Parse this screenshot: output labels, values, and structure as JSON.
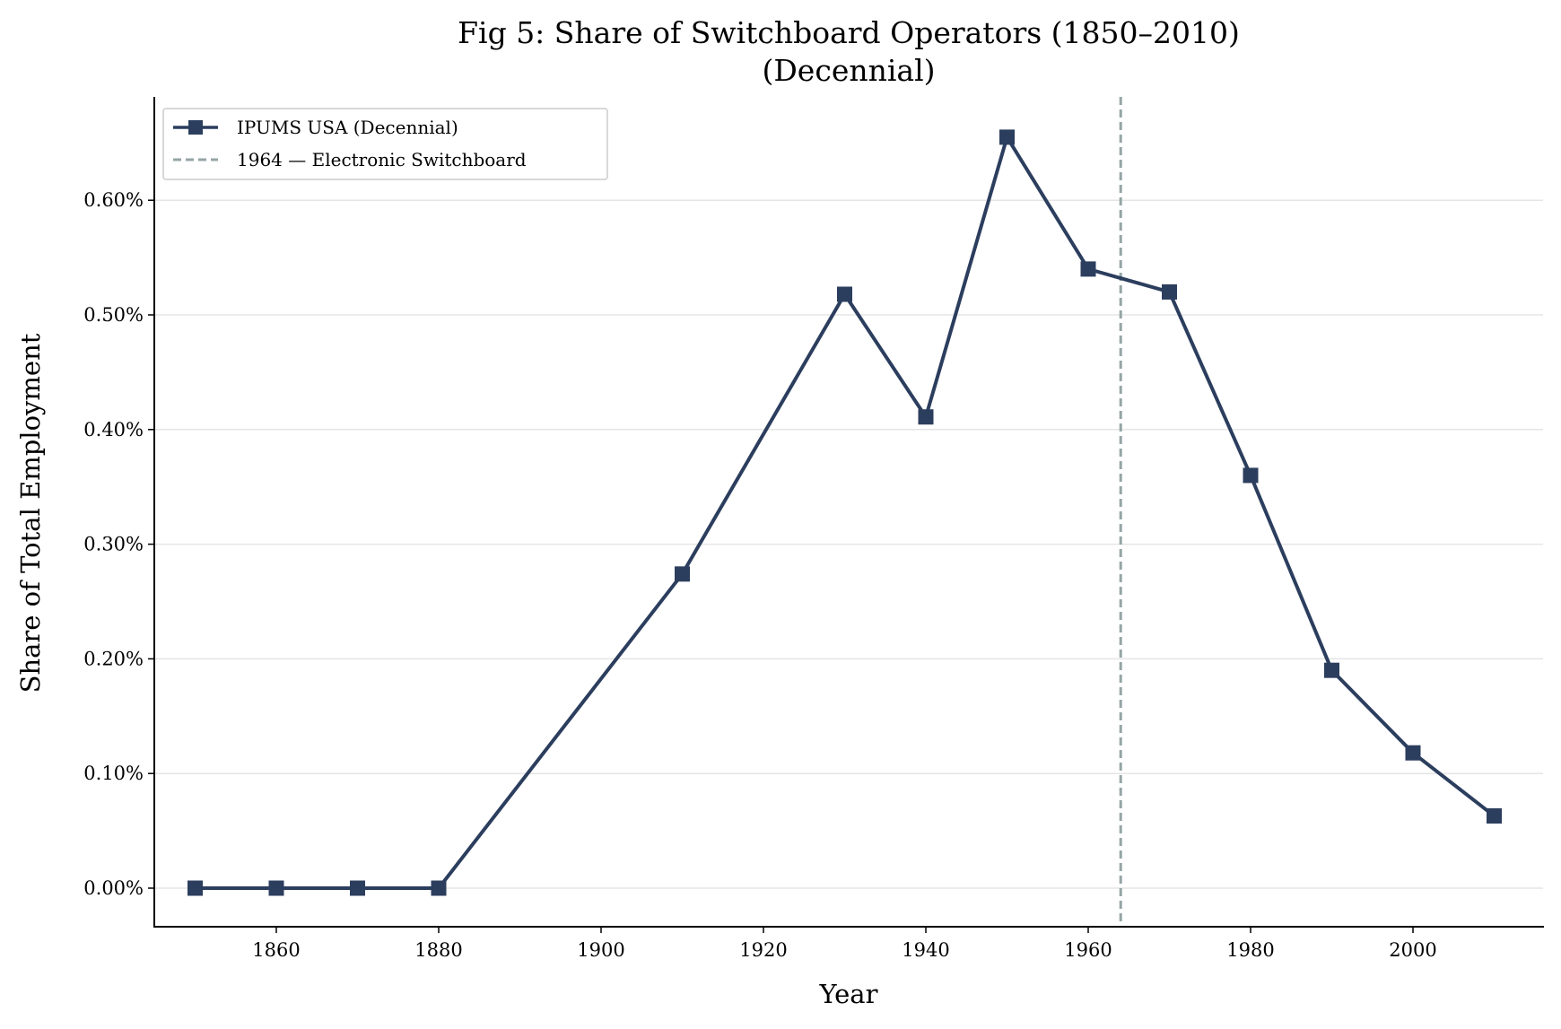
{
  "chart_data": {
    "type": "line",
    "title": "Fig 5: Share of Switchboard Operators (1850–2010)",
    "subtitle": "(Decennial)",
    "xlabel": "Year",
    "ylabel": "Share of Total Employment",
    "xlim": [
      1845,
      2015
    ],
    "ylim": [
      -0.032,
      0.69
    ],
    "x_ticks": [
      1860,
      1880,
      1900,
      1920,
      1940,
      1960,
      1980,
      2000
    ],
    "x_tick_labels": [
      "1860",
      "1880",
      "1900",
      "1920",
      "1940",
      "1960",
      "1980",
      "2000"
    ],
    "y_ticks": [
      0,
      0.1,
      0.2,
      0.3,
      0.4,
      0.5,
      0.6
    ],
    "y_tick_labels": [
      "0.00%",
      "0.10%",
      "0.20%",
      "0.30%",
      "0.40%",
      "0.50%",
      "0.60%"
    ],
    "grid": "horizontal",
    "legend_placement": "top-left",
    "series": [
      {
        "name": "IPUMS USA (Decennial)",
        "color": "#2c3e5e",
        "marker": "square",
        "x": [
          1850,
          1860,
          1870,
          1880,
          1910,
          1930,
          1940,
          1950,
          1960,
          1970,
          1980,
          1990,
          2000,
          2010
        ],
        "y": [
          0.0,
          0.0,
          0.0,
          0.0,
          0.274,
          0.518,
          0.411,
          0.655,
          0.54,
          0.52,
          0.36,
          0.19,
          0.118,
          0.063
        ]
      }
    ],
    "annotations": [
      {
        "type": "vline",
        "x": 1964,
        "label": "1964 — Electronic Switchboard",
        "color": "#95a5a6",
        "style": "dashed"
      }
    ]
  }
}
